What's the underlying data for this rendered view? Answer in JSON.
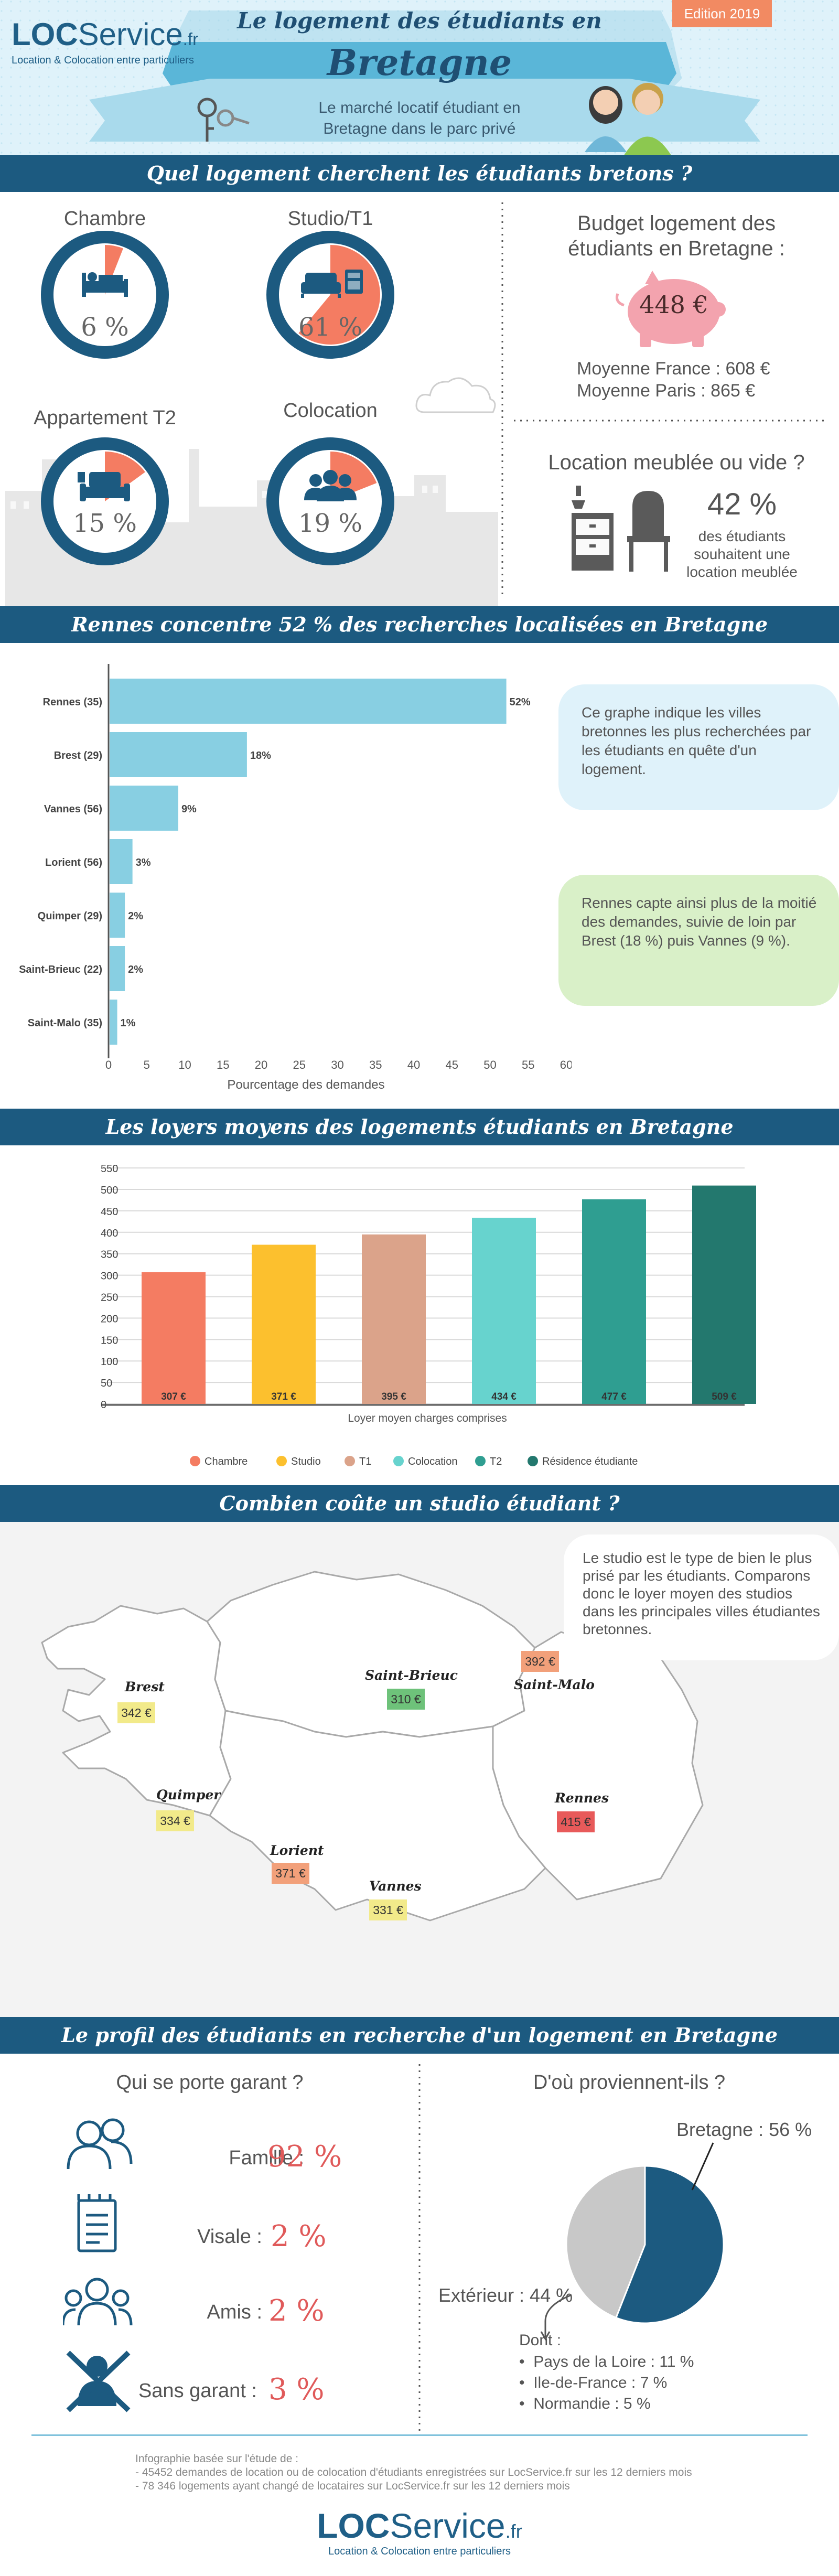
{
  "header": {
    "logo_loc": "LOC",
    "logo_service": "Service",
    "logo_fr": ".fr",
    "logo_tagline": "Location & Colocation entre particuliers",
    "title_line1": "Le logement des étudiants en",
    "title_line2": "Bretagne",
    "edition": "Edition 2019",
    "subtitle_line1": "Le marché locatif étudiant en",
    "subtitle_line2": "Bretagne dans le parc privé"
  },
  "section1": {
    "bar_title": "Quel logement cherchent les étudiants bretons ?",
    "donuts": [
      {
        "label": "Chambre",
        "pct_text": "6 %",
        "value": 6,
        "icon": "bed-icon"
      },
      {
        "label": "Studio/T1",
        "pct_text": "61 %",
        "value": 61,
        "icon": "sofa-icon"
      },
      {
        "label": "Appartement T2",
        "pct_text": "15 %",
        "value": 15,
        "icon": "armchair-icon"
      },
      {
        "label": "Colocation",
        "pct_text": "19 %",
        "value": 19,
        "icon": "group-icon"
      }
    ],
    "budget_title_line1": "Budget logement des",
    "budget_title_line2": "étudiants en Bretagne :",
    "budget_value": "448 €",
    "budget_france": "Moyenne France : 608 €",
    "budget_paris": "Moyenne Paris : 865 €",
    "meuble_title": "Location meublée ou vide ?",
    "meuble_pct": "42 %",
    "meuble_line1": "des étudiants",
    "meuble_line2": "souhaitent une",
    "meuble_line3": "location meublée"
  },
  "section2": {
    "bar_title": "Rennes concentre 52 % des recherches localisées en Bretagne",
    "callout1": "Ce graphe indique les villes bretonnes les plus recherchées par les étudiants en quête d'un logement.",
    "callout2": "Rennes capte ainsi plus de la moitié des demandes, suivie de loin par Brest (18 %) puis Vannes (9 %)."
  },
  "section3": {
    "bar_title": "Les loyers moyens des logements étudiants en Bretagne"
  },
  "section4": {
    "bar_title": "Combien coûte un studio étudiant ?",
    "callout": "Le studio est le type de bien le plus prisé par les étudiants. Comparons donc le loyer moyen des studios dans les principales villes étudiantes bretonnes.",
    "cities": [
      {
        "name": "Brest",
        "price": "342 €",
        "color": "#f2ea8a"
      },
      {
        "name": "Saint-Brieuc",
        "price": "310 €",
        "color": "#6ec27a"
      },
      {
        "name": "Saint-Malo",
        "price": "392 €",
        "color": "#f2a07a"
      },
      {
        "name": "Quimper",
        "price": "334 €",
        "color": "#f2ea8a"
      },
      {
        "name": "Lorient",
        "price": "371 €",
        "color": "#f2a07a"
      },
      {
        "name": "Vannes",
        "price": "331 €",
        "color": "#f2ea8a"
      },
      {
        "name": "Rennes",
        "price": "415 €",
        "color": "#e85a5a"
      }
    ]
  },
  "section5": {
    "bar_title": "Le profil des étudiants en recherche d'un logement en Bretagne",
    "garant_title": "Qui se porte garant ?",
    "garants": [
      {
        "label": "Famille :",
        "pct": "92 %",
        "icon": "family-icon"
      },
      {
        "label": "Visale :",
        "pct": "2 %",
        "icon": "document-icon"
      },
      {
        "label": "Amis :",
        "pct": "2 %",
        "icon": "friends-icon"
      },
      {
        "label": "Sans garant :",
        "pct": "3 %",
        "icon": "no-guarantor-icon"
      }
    ],
    "origin_title": "D'où proviennent-ils ?",
    "origin_bretagne": "Bretagne : 56 %",
    "origin_exterieur": "Extérieur : 44 %",
    "dont": "Dont :",
    "dont_items": [
      "Pays de la Loire : 11 %",
      "Ile-de-France : 7 %",
      "Normandie : 5 %"
    ]
  },
  "footer": {
    "source_title": "Infographie basée sur l'étude de :",
    "source_line1": "- 45452 demandes de location ou de colocation d'étudiants enregistrées sur LocService.fr sur les 12 derniers mois",
    "source_line2": "- 78 346 logements ayant changé de locataires sur LocService.fr sur les 12 derniers mois"
  },
  "chart_data": [
    {
      "type": "bar",
      "orientation": "horizontal",
      "categories": [
        "Rennes (35)",
        "Brest (29)",
        "Vannes (56)",
        "Lorient (56)",
        "Quimper (29)",
        "Saint-Brieuc (22)",
        "Saint-Malo (35)"
      ],
      "values": [
        52,
        18,
        9,
        3,
        2,
        2,
        1
      ],
      "value_labels": [
        "52%",
        "18%",
        "9%",
        "3%",
        "2%",
        "2%",
        "1%"
      ],
      "xlabel": "Pourcentage des demandes",
      "xlim": [
        0,
        60
      ],
      "xticks": [
        "0",
        "5",
        "10",
        "15",
        "20",
        "25",
        "30",
        "35",
        "40",
        "45",
        "50",
        "55",
        "60"
      ],
      "color": "#88cfe2"
    },
    {
      "type": "bar",
      "categories": [
        "Chambre",
        "Studio",
        "T1",
        "Colocation",
        "T2",
        "Résidence étudiante"
      ],
      "values": [
        307,
        371,
        395,
        434,
        477,
        509
      ],
      "value_labels": [
        "307 €",
        "371 €",
        "395 €",
        "434 €",
        "477 €",
        "509 €"
      ],
      "colors": [
        "#f47c62",
        "#fcc02e",
        "#dba38a",
        "#67d3ce",
        "#2f9e91",
        "#23786e"
      ],
      "xlabel": "Loyer moyen charges comprises",
      "ylim": [
        0,
        550
      ],
      "yticks": [
        "0",
        "50",
        "100",
        "150",
        "200",
        "250",
        "300",
        "350",
        "400",
        "450",
        "500",
        "550"
      ],
      "legend": [
        "Chambre",
        "Studio",
        "T1",
        "Colocation",
        "T2",
        "Résidence étudiante"
      ],
      "grid": true
    },
    {
      "type": "pie",
      "labels": [
        "Bretagne",
        "Extérieur"
      ],
      "values": [
        56,
        44
      ],
      "colors": [
        "#1c5a80",
        "#c8c8c8"
      ]
    }
  ]
}
